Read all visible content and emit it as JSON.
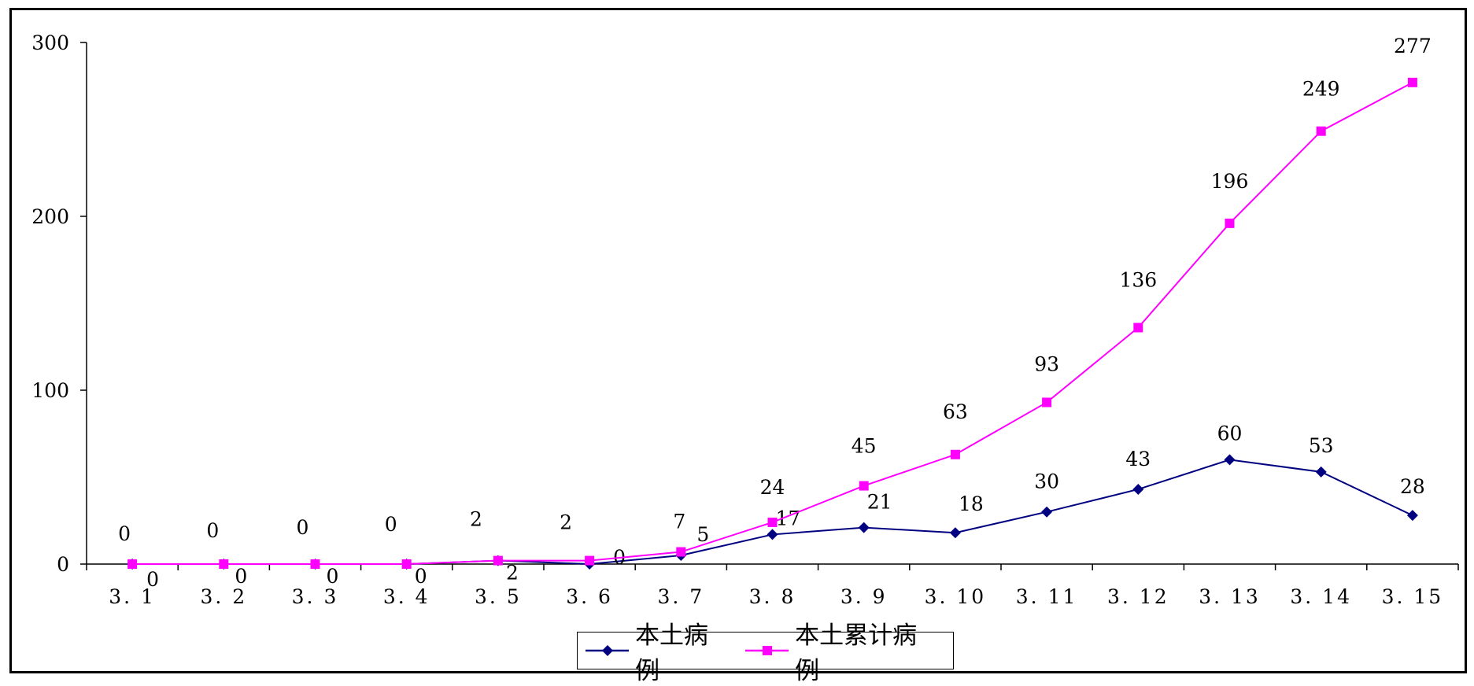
{
  "chart_data": {
    "type": "line",
    "title": "",
    "xlabel": "",
    "ylabel": "",
    "categories": [
      "3.1",
      "3.2",
      "3.3",
      "3.4",
      "3.5",
      "3.6",
      "3.7",
      "3.8",
      "3.9",
      "3.10",
      "3.11",
      "3.12",
      "3.13",
      "3.14",
      "3.15"
    ],
    "ylim": [
      0,
      300
    ],
    "yticks": [
      "0",
      "100",
      "200",
      "300"
    ],
    "grid": false,
    "legend_position": "bottom",
    "series": [
      {
        "name": "本土病例",
        "color": "#000080",
        "marker": "diamond",
        "values": [
          0,
          0,
          0,
          0,
          2,
          0,
          5,
          17,
          21,
          18,
          30,
          43,
          60,
          53,
          28
        ]
      },
      {
        "name": "本土累计病例",
        "color": "#FF00FF",
        "marker": "square",
        "values": [
          0,
          0,
          0,
          0,
          2,
          2,
          7,
          24,
          45,
          63,
          93,
          136,
          196,
          249,
          277
        ]
      }
    ]
  }
}
